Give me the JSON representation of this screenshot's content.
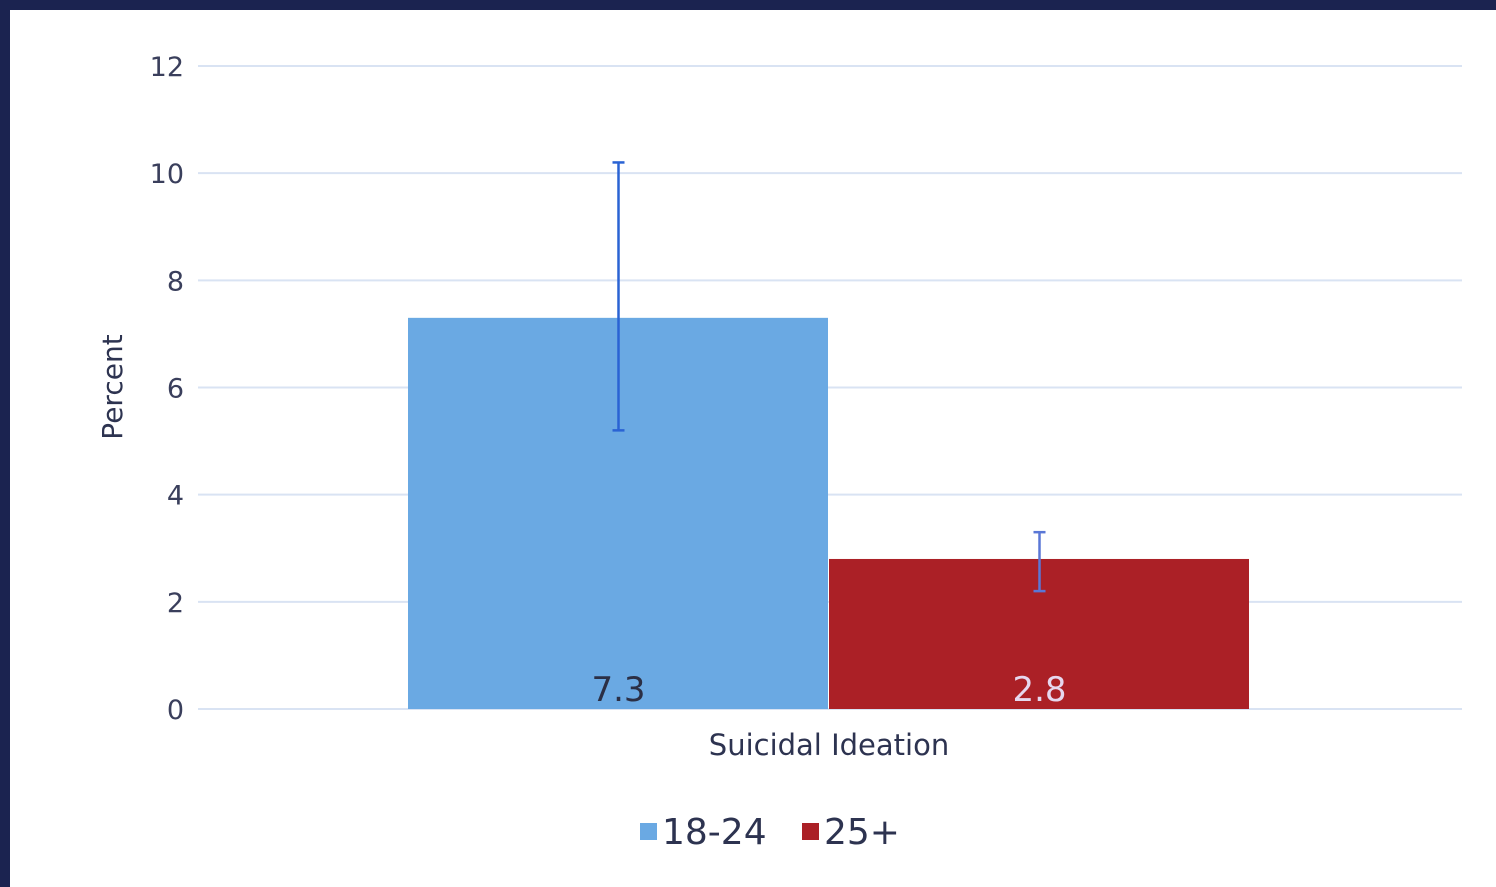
{
  "chart_data": {
    "type": "bar",
    "categories": [
      "Suicidal Ideation"
    ],
    "series": [
      {
        "name": "18-24",
        "values": [
          7.3
        ],
        "error_low": [
          5.2
        ],
        "error_high": [
          10.2
        ],
        "color": "#6aa9e3",
        "label_color": "#2b2f45",
        "error_color": "#2a63d4"
      },
      {
        "name": "25+",
        "values": [
          2.8
        ],
        "error_low": [
          2.2
        ],
        "error_high": [
          3.3
        ],
        "color": "#ab2026",
        "label_color": "#e6d7ee",
        "error_color": "#5a77d6"
      }
    ],
    "data_labels": [
      "7.3",
      "2.8"
    ],
    "title": "",
    "xlabel": "",
    "ylabel": "Percent",
    "ylim": [
      0,
      12
    ],
    "yticks": [
      "0",
      "2",
      "4",
      "6",
      "8",
      "10",
      "12"
    ],
    "grid": true,
    "grid_color": "#d9e3f3",
    "legend_position": "bottom-center"
  }
}
